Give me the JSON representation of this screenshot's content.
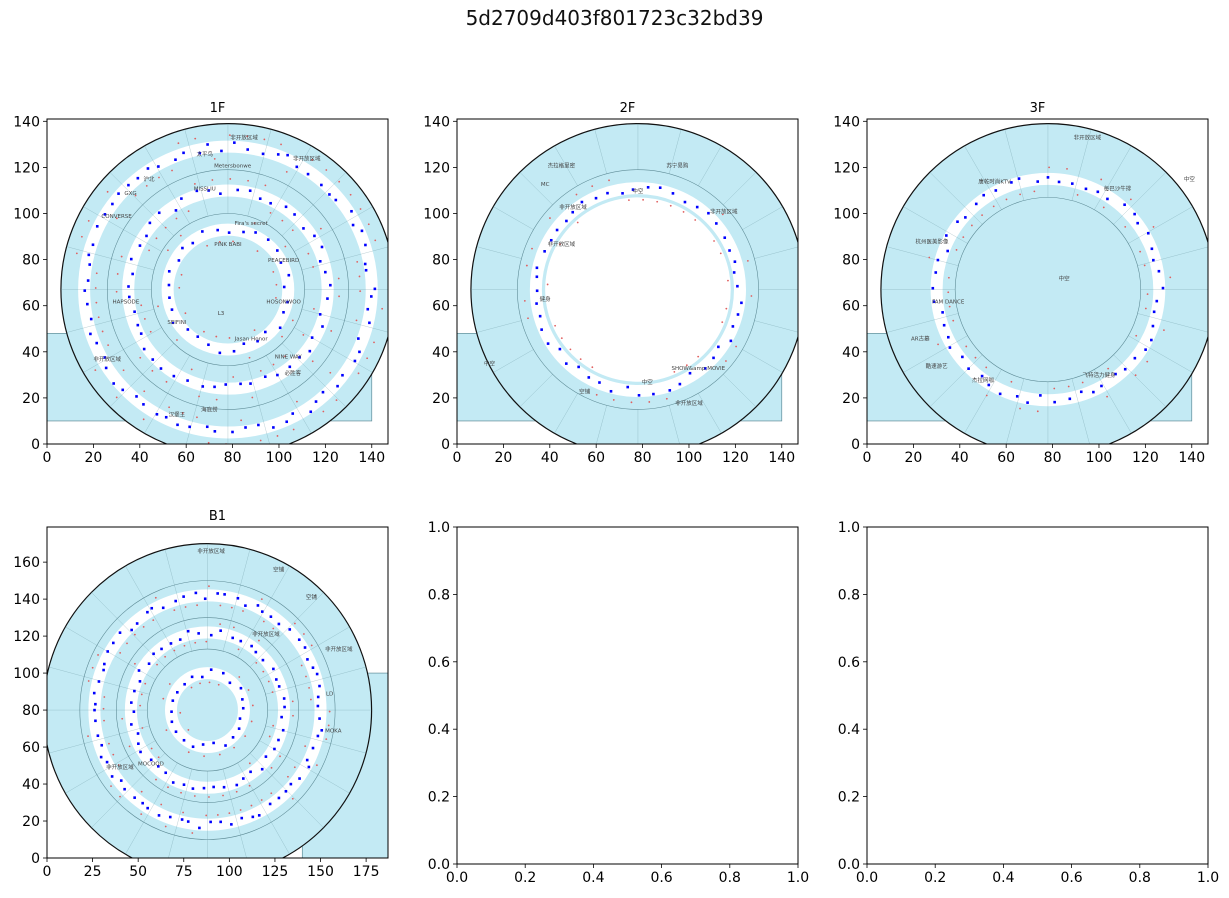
{
  "figure": {
    "title": "5d2709d403f801723c32bd39"
  },
  "colors": {
    "region_fill": "#c3eaf4",
    "region_stroke": "#5f8c97",
    "wall": "#111111",
    "point_blue": "#0000ff",
    "point_red": "#e06060",
    "axes": "#000000"
  },
  "chart_data": [
    {
      "type": "scatter",
      "panel": "1F",
      "title": "1F",
      "xlim": [
        0,
        147
      ],
      "ylim": [
        0,
        141
      ],
      "xticks": [
        0,
        20,
        40,
        60,
        80,
        100,
        120,
        140
      ],
      "yticks": [
        0,
        20,
        40,
        60,
        80,
        100,
        120,
        140
      ],
      "tick_labels_x": [
        "0",
        "20",
        "40",
        "60",
        "80",
        "100",
        "120",
        "140"
      ],
      "tick_labels_y": [
        "0",
        "20",
        "40",
        "60",
        "80",
        "100",
        "120",
        "140"
      ],
      "layout": "ring",
      "center": [
        78,
        67
      ],
      "rings": [
        72,
        52,
        33
      ],
      "walkway_rings": [
        62,
        43,
        26
      ],
      "wedge": {
        "x": [
          0,
          140
        ],
        "y": [
          10,
          48
        ]
      },
      "labels": [
        {
          "text": "非开放区域",
          "x": 85,
          "y": 132
        },
        {
          "text": "太平鸟",
          "x": 68,
          "y": 125
        },
        {
          "text": "Metersbonwe",
          "x": 80,
          "y": 120
        },
        {
          "text": "非开放区域",
          "x": 112,
          "y": 123
        },
        {
          "text": "GXG",
          "x": 36,
          "y": 108
        },
        {
          "text": "沪北",
          "x": 44,
          "y": 114
        },
        {
          "text": "MISSLIU",
          "x": 68,
          "y": 110
        },
        {
          "text": "Fira's secret",
          "x": 88,
          "y": 95
        },
        {
          "text": "CONVERSE",
          "x": 30,
          "y": 98
        },
        {
          "text": "PINK BABI",
          "x": 78,
          "y": 86
        },
        {
          "text": "PEACEBIRD",
          "x": 102,
          "y": 79
        },
        {
          "text": "HAPSODE",
          "x": 34,
          "y": 61
        },
        {
          "text": "SEIFINI",
          "x": 56,
          "y": 52
        },
        {
          "text": "L3",
          "x": 75,
          "y": 56
        },
        {
          "text": "HOSONWOO",
          "x": 102,
          "y": 61
        },
        {
          "text": "Jasan Honor",
          "x": 88,
          "y": 45
        },
        {
          "text": "NINE WAY",
          "x": 104,
          "y": 37
        },
        {
          "text": "非开放区域",
          "x": 26,
          "y": 36
        },
        {
          "text": "汉堡王",
          "x": 56,
          "y": 12
        },
        {
          "text": "海底捞",
          "x": 70,
          "y": 14
        },
        {
          "text": "必胜客",
          "x": 106,
          "y": 30
        }
      ]
    },
    {
      "type": "scatter",
      "panel": "2F",
      "title": "2F",
      "xlim": [
        0,
        147
      ],
      "ylim": [
        0,
        141
      ],
      "xticks": [
        0,
        20,
        40,
        60,
        80,
        100,
        120,
        140
      ],
      "yticks": [
        0,
        20,
        40,
        60,
        80,
        100,
        120,
        140
      ],
      "tick_labels_x": [
        "0",
        "20",
        "40",
        "60",
        "80",
        "100",
        "120",
        "140"
      ],
      "tick_labels_y": [
        "0",
        "20",
        "40",
        "60",
        "80",
        "100",
        "120",
        "140"
      ],
      "layout": "ring",
      "center": [
        78,
        67
      ],
      "rings": [
        72,
        52
      ],
      "walkway_rings": [
        44
      ],
      "wedge": {
        "x": [
          0,
          140
        ],
        "y": [
          10,
          48
        ]
      },
      "labels": [
        {
          "text": "苏宁易购",
          "x": 95,
          "y": 120
        },
        {
          "text": "杰拉格里密",
          "x": 45,
          "y": 120
        },
        {
          "text": "MC",
          "x": 38,
          "y": 112
        },
        {
          "text": "中空",
          "x": 78,
          "y": 109
        },
        {
          "text": "非开放区域",
          "x": 115,
          "y": 100
        },
        {
          "text": "非开放区域",
          "x": 50,
          "y": 102
        },
        {
          "text": "非开放区域",
          "x": 45,
          "y": 86
        },
        {
          "text": "健身",
          "x": 38,
          "y": 62
        },
        {
          "text": "SHOW&amp;MOVIE",
          "x": 104,
          "y": 32
        },
        {
          "text": "空铺",
          "x": 55,
          "y": 22
        },
        {
          "text": "中空",
          "x": 82,
          "y": 26
        },
        {
          "text": "非开放区域",
          "x": 100,
          "y": 17
        },
        {
          "text": "中空",
          "x": 14,
          "y": 34
        }
      ]
    },
    {
      "type": "scatter",
      "panel": "3F",
      "title": "3F",
      "xlim": [
        0,
        147
      ],
      "ylim": [
        0,
        141
      ],
      "xticks": [
        0,
        20,
        40,
        60,
        80,
        100,
        120,
        140
      ],
      "yticks": [
        0,
        20,
        40,
        60,
        80,
        100,
        120,
        140
      ],
      "tick_labels_x": [
        "0",
        "20",
        "40",
        "60",
        "80",
        "100",
        "120",
        "140"
      ],
      "tick_labels_y": [
        "0",
        "20",
        "40",
        "60",
        "80",
        "100",
        "120",
        "140"
      ],
      "layout": "ring",
      "center": [
        78,
        67
      ],
      "rings": [
        72,
        40
      ],
      "walkway_rings": [
        48
      ],
      "wedge": {
        "x": [
          0,
          140
        ],
        "y": [
          10,
          48
        ]
      },
      "labels": [
        {
          "text": "非开放区域",
          "x": 95,
          "y": 132
        },
        {
          "text": "唐乾时尚KTV",
          "x": 55,
          "y": 113
        },
        {
          "text": "每巴沙牛排",
          "x": 108,
          "y": 110
        },
        {
          "text": "中空",
          "x": 139,
          "y": 114
        },
        {
          "text": "杭州医美影像",
          "x": 28,
          "y": 87
        },
        {
          "text": "中空",
          "x": 85,
          "y": 71
        },
        {
          "text": "FAM DANCE",
          "x": 35,
          "y": 61
        },
        {
          "text": "AR古墓",
          "x": 23,
          "y": 45
        },
        {
          "text": "酷速游艺",
          "x": 30,
          "y": 33
        },
        {
          "text": "杰拉网咖",
          "x": 50,
          "y": 27
        },
        {
          "text": "飞特活力健身",
          "x": 100,
          "y": 29
        }
      ]
    },
    {
      "type": "scatter",
      "panel": "B1",
      "title": "B1",
      "xlim": [
        0,
        187
      ],
      "ylim": [
        0,
        179
      ],
      "xticks": [
        0,
        25,
        50,
        75,
        100,
        125,
        150,
        175
      ],
      "yticks": [
        0,
        20,
        40,
        60,
        80,
        100,
        120,
        140,
        160
      ],
      "tick_labels_x": [
        "0",
        "25",
        "50",
        "75",
        "100",
        "125",
        "150",
        "175"
      ],
      "tick_labels_y": [
        "0",
        "20",
        "40",
        "60",
        "80",
        "100",
        "120",
        "140",
        "160"
      ],
      "layout": "ring",
      "center": [
        88,
        80
      ],
      "rings": [
        90,
        70,
        50,
        33
      ],
      "walkway_rings": [
        62,
        42,
        20
      ],
      "wedge": {
        "x": [
          140,
          187
        ],
        "y": [
          0,
          100
        ]
      },
      "labels": [
        {
          "text": "非开放区域",
          "x": 90,
          "y": 165
        },
        {
          "text": "空铺",
          "x": 127,
          "y": 155
        },
        {
          "text": "非开放区域",
          "x": 160,
          "y": 112
        },
        {
          "text": "非开放区域",
          "x": 40,
          "y": 48
        },
        {
          "text": "MOCOOD",
          "x": 57,
          "y": 50
        },
        {
          "text": "LD",
          "x": 155,
          "y": 88
        },
        {
          "text": "MOKA",
          "x": 157,
          "y": 68
        },
        {
          "text": "非开放区域",
          "x": 120,
          "y": 120
        },
        {
          "text": "空铺",
          "x": 145,
          "y": 140
        }
      ]
    },
    {
      "type": "scatter",
      "panel": "empty-1",
      "title": "",
      "xlim": [
        0,
        1
      ],
      "ylim": [
        0,
        1
      ],
      "xticks": [
        0.0,
        0.2,
        0.4,
        0.6,
        0.8,
        1.0
      ],
      "yticks": [
        0.0,
        0.2,
        0.4,
        0.6,
        0.8,
        1.0
      ],
      "tick_labels_x": [
        "0.0",
        "0.2",
        "0.4",
        "0.6",
        "0.8",
        "1.0"
      ],
      "tick_labels_y": [
        "0.0",
        "0.2",
        "0.4",
        "0.6",
        "0.8",
        "1.0"
      ],
      "layout": "empty"
    },
    {
      "type": "scatter",
      "panel": "empty-2",
      "title": "",
      "xlim": [
        0,
        1
      ],
      "ylim": [
        0,
        1
      ],
      "xticks": [
        0.0,
        0.2,
        0.4,
        0.6,
        0.8,
        1.0
      ],
      "yticks": [
        0.0,
        0.2,
        0.4,
        0.6,
        0.8,
        1.0
      ],
      "tick_labels_x": [
        "0.0",
        "0.2",
        "0.4",
        "0.6",
        "0.8",
        "1.0"
      ],
      "tick_labels_y": [
        "0.0",
        "0.2",
        "0.4",
        "0.6",
        "0.8",
        "1.0"
      ],
      "layout": "empty"
    }
  ]
}
